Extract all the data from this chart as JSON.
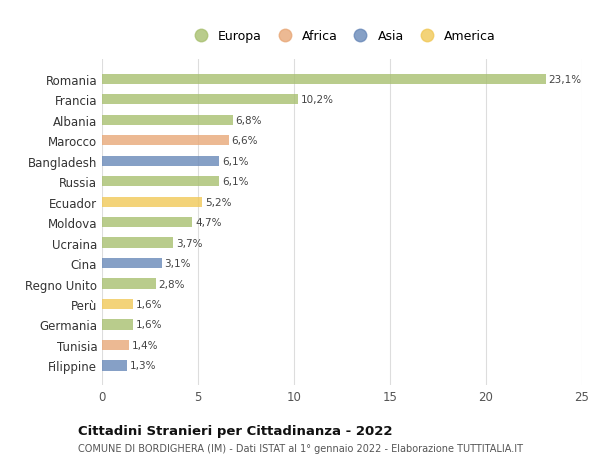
{
  "countries": [
    "Romania",
    "Francia",
    "Albania",
    "Marocco",
    "Bangladesh",
    "Russia",
    "Ecuador",
    "Moldova",
    "Ucraina",
    "Cina",
    "Regno Unito",
    "Perù",
    "Germania",
    "Tunisia",
    "Filippine"
  ],
  "values": [
    23.1,
    10.2,
    6.8,
    6.6,
    6.1,
    6.1,
    5.2,
    4.7,
    3.7,
    3.1,
    2.8,
    1.6,
    1.6,
    1.4,
    1.3
  ],
  "continents": [
    "Europa",
    "Europa",
    "Europa",
    "Africa",
    "Asia",
    "Europa",
    "America",
    "Europa",
    "Europa",
    "Asia",
    "Europa",
    "America",
    "Europa",
    "Africa",
    "Asia"
  ],
  "colors": {
    "Europa": "#a8c070",
    "Africa": "#e8a878",
    "Asia": "#6888b8",
    "America": "#f0c858"
  },
  "xlim": [
    0,
    25
  ],
  "xticks": [
    0,
    5,
    10,
    15,
    20,
    25
  ],
  "title": "Cittadini Stranieri per Cittadinanza - 2022",
  "subtitle": "COMUNE DI BORDIGHERA (IM) - Dati ISTAT al 1° gennaio 2022 - Elaborazione TUTTITALIA.IT",
  "background_color": "#ffffff",
  "grid_color": "#dddddd",
  "bar_height": 0.5,
  "bar_alpha": 0.8,
  "legend_order": [
    "Europa",
    "Africa",
    "Asia",
    "America"
  ]
}
